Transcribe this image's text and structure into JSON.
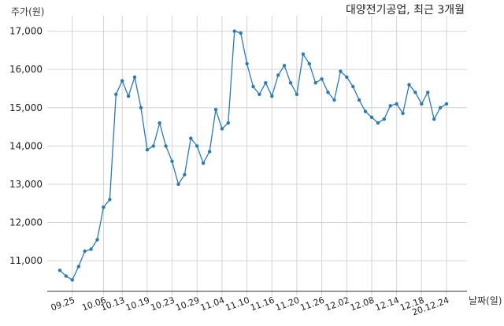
{
  "chart_data": {
    "type": "line",
    "title": "대양전기공업, 최근 3개월",
    "ylabel": "주가(원)",
    "xlabel": "날짜(일)",
    "ylim": [
      10200,
      17300
    ],
    "yticks": [
      11000,
      12000,
      13000,
      14000,
      15000,
      16000,
      17000
    ],
    "ytick_labels": [
      "11,000",
      "12,000",
      "13,000",
      "14,000",
      "15,000",
      "16,000",
      "17,000"
    ],
    "xticks": [
      {
        "label": "09.25",
        "index": 2
      },
      {
        "label": "10.06",
        "index": 7
      },
      {
        "label": "10.13",
        "index": 10
      },
      {
        "label": "10.19",
        "index": 14
      },
      {
        "label": "10.23",
        "index": 18
      },
      {
        "label": "10.29",
        "index": 22
      },
      {
        "label": "11.04",
        "index": 26
      },
      {
        "label": "11.10",
        "index": 30
      },
      {
        "label": "11.16",
        "index": 34
      },
      {
        "label": "11.20",
        "index": 38
      },
      {
        "label": "11.26",
        "index": 42
      },
      {
        "label": "12.02",
        "index": 46
      },
      {
        "label": "12.08",
        "index": 50
      },
      {
        "label": "12.14",
        "index": 54
      },
      {
        "label": "12.18",
        "index": 58
      },
      {
        "label": "20.12.24",
        "index": 62
      }
    ],
    "grid": true,
    "color": "#2a7ab8",
    "series": [
      {
        "values": [
          10750,
          10600,
          10500,
          10850,
          11250,
          11300,
          11550,
          12400,
          12600,
          15350,
          15700,
          15300,
          15800,
          15000,
          13900,
          14000,
          14600,
          14000,
          13600,
          13000,
          13250,
          14200,
          14000,
          13550,
          13850,
          14950,
          14450,
          14600,
          17000,
          16950,
          16150,
          15550,
          15350,
          15650,
          15300,
          15850,
          16100,
          15650,
          15350,
          16400,
          16150,
          15650,
          15750,
          15400,
          15200,
          15950,
          15800,
          15550,
          15200,
          14900,
          14750,
          14600,
          14700,
          15050,
          15100,
          14850,
          15600,
          15400,
          15100,
          15400,
          14700,
          15000,
          15100
        ]
      }
    ]
  }
}
